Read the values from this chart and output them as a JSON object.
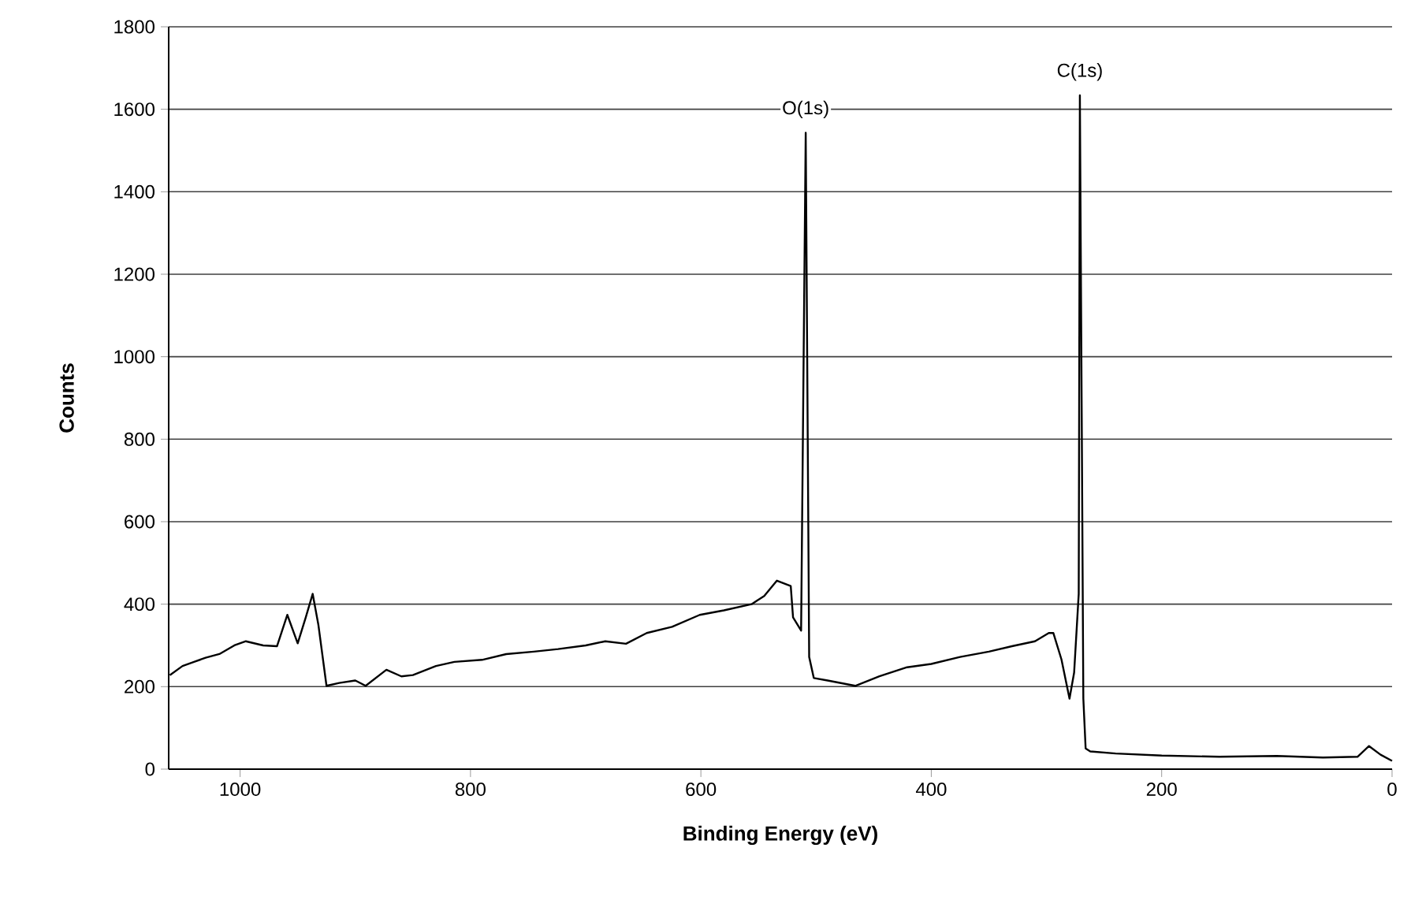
{
  "chart_data": {
    "type": "line",
    "xlabel": "Binding Energy (eV)",
    "ylabel": "Counts",
    "xlim": [
      1062,
      0
    ],
    "xticks": [
      1000,
      800,
      600,
      400,
      200,
      0
    ],
    "ylim": [
      0,
      1800
    ],
    "yticks": [
      0,
      200,
      400,
      600,
      800,
      1000,
      1200,
      1400,
      1600,
      1800
    ],
    "grid": "y",
    "marker": "none",
    "line_style": "solid",
    "annotations": [
      {
        "text": "O(1s)",
        "x": 509,
        "y": 1543
      },
      {
        "text": "C(1s)",
        "x": 271,
        "y": 1634
      }
    ],
    "series": [
      {
        "color": "#000000",
        "x": [
          1061,
          1050,
          1040,
          1030,
          1018,
          1005,
          995,
          980,
          968,
          959,
          950,
          943,
          937,
          932,
          925,
          914,
          900,
          891,
          873,
          860,
          850,
          830,
          814,
          790,
          769,
          745,
          724,
          700,
          683,
          665,
          647,
          625,
          601,
          580,
          556,
          545,
          534,
          522,
          520,
          513,
          509,
          506,
          502,
          490,
          466,
          445,
          421,
          400,
          375,
          350,
          330,
          310,
          298,
          294,
          287,
          280,
          276,
          272,
          271,
          268,
          266,
          262,
          240,
          200,
          150,
          100,
          60,
          30,
          20,
          10,
          0
        ],
        "values": [
          228,
          250,
          260,
          270,
          279,
          300,
          310,
          300,
          298,
          374,
          305,
          368,
          425,
          349,
          202,
          209,
          215,
          202,
          241,
          225,
          228,
          250,
          260,
          265,
          279,
          285,
          291,
          300,
          310,
          304,
          330,
          345,
          374,
          385,
          400,
          420,
          457,
          444,
          368,
          336,
          1543,
          272,
          221,
          215,
          202,
          225,
          247,
          255,
          272,
          285,
          298,
          310,
          330,
          330,
          266,
          171,
          234,
          425,
          1634,
          171,
          50,
          43,
          38,
          33,
          30,
          32,
          28,
          30,
          56,
          35,
          20
        ]
      }
    ]
  }
}
